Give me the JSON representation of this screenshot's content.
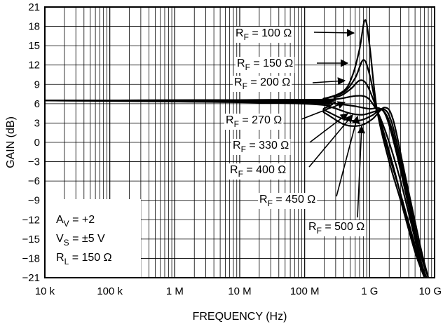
{
  "chart_data": {
    "type": "line",
    "title": "",
    "xlabel": "FREQUENCY (Hz)",
    "ylabel": "GAIN (dB)",
    "x_scale": "log",
    "xlim": [
      10000,
      10000000000
    ],
    "ylim": [
      -21,
      21
    ],
    "grid": true,
    "x_tick_values": [
      10000,
      100000,
      1000000,
      10000000,
      100000000,
      1000000000,
      10000000000
    ],
    "x_tick_labels": [
      "10 k",
      "100 k",
      "1 M",
      "10 M",
      "100 M",
      "1 G",
      "10 G"
    ],
    "y_tick_values": [
      21,
      18,
      15,
      12,
      9,
      6,
      3,
      0,
      -3,
      -6,
      -9,
      -12,
      -15,
      -18,
      -21
    ],
    "y_tick_labels": [
      "21",
      "18",
      "15",
      "12",
      "9",
      "6",
      "3",
      "0",
      "−3",
      "−6",
      "−9",
      "−12",
      "−15",
      "−18",
      "−21"
    ],
    "conditions": [
      {
        "sym": "A",
        "sub": "V",
        "rest": " = +2"
      },
      {
        "sym": "V",
        "sub": "S",
        "rest": " = ±5 V"
      },
      {
        "sym": "R",
        "sub": "L",
        "rest": " = 150 Ω"
      }
    ],
    "series": [
      {
        "sym": "R",
        "sub": "F",
        "rest": " = 100 Ω",
        "x": [
          10000,
          100000000,
          200000000,
          400000000,
          550000000,
          700000000,
          850000000,
          1000000000,
          1300000000,
          2000000000,
          3000000000,
          5000000000,
          7000000000
        ],
        "y": [
          6.5,
          6.6,
          6.8,
          8.0,
          10.5,
          14.5,
          19.0,
          15.0,
          5.0,
          -3.0,
          -9.0,
          -17.0,
          -21.0
        ]
      },
      {
        "sym": "R",
        "sub": "F",
        "rest": " = 150 Ω",
        "x": [
          10000,
          100000000,
          200000000,
          400000000,
          600000000,
          800000000,
          1000000000,
          1300000000,
          2000000000,
          3000000000,
          5000000000,
          7000000000
        ],
        "y": [
          6.5,
          6.6,
          6.8,
          7.8,
          10.0,
          12.8,
          10.5,
          5.0,
          -2.0,
          -8.0,
          -16.0,
          -21.0
        ]
      },
      {
        "sym": "R",
        "sub": "F",
        "rest": " = 200 Ω",
        "x": [
          10000,
          100000000,
          300000000,
          500000000,
          700000000,
          900000000,
          1200000000,
          1600000000,
          2500000000,
          4000000000,
          7000000000
        ],
        "y": [
          6.5,
          6.6,
          7.0,
          8.2,
          9.6,
          9.0,
          6.0,
          2.0,
          -5.0,
          -13.0,
          -21.0
        ]
      },
      {
        "sym": "R",
        "sub": "F",
        "rest": " = 270 Ω",
        "x": [
          10000,
          100000000,
          300000000,
          600000000,
          900000000,
          1200000000,
          1500000000,
          2000000000,
          3000000000,
          5000000000,
          7000000000
        ],
        "y": [
          6.5,
          6.5,
          6.7,
          7.2,
          7.0,
          5.5,
          3.5,
          0.0,
          -6.0,
          -15.0,
          -21.0
        ]
      },
      {
        "sym": "R",
        "sub": "F",
        "rest": " = 330 Ω",
        "x": [
          10000,
          100000000,
          300000000,
          600000000,
          1000000000,
          1400000000,
          1800000000,
          2500000000,
          4000000000,
          6000000000,
          7500000000
        ],
        "y": [
          6.5,
          6.4,
          6.0,
          5.6,
          5.2,
          5.3,
          4.0,
          -1.0,
          -10.0,
          -18.0,
          -21.0
        ]
      },
      {
        "sym": "R",
        "sub": "F",
        "rest": " = 400 Ω",
        "x": [
          10000,
          100000000,
          250000000,
          500000000,
          800000000,
          1200000000,
          1600000000,
          2200000000,
          3500000000,
          6000000000,
          7500000000
        ],
        "y": [
          6.5,
          6.3,
          5.5,
          4.5,
          4.3,
          4.8,
          5.0,
          2.0,
          -7.0,
          -18.0,
          -21.0
        ]
      },
      {
        "sym": "R",
        "sub": "F",
        "rest": " = 450 Ω",
        "x": [
          10000,
          100000000,
          200000000,
          400000000,
          700000000,
          1100000000,
          1600000000,
          2200000000,
          3500000000,
          6000000000,
          8000000000
        ],
        "y": [
          6.5,
          6.2,
          5.0,
          3.6,
          3.4,
          4.2,
          5.2,
          3.0,
          -6.0,
          -17.0,
          -21.0
        ]
      },
      {
        "sym": "R",
        "sub": "F",
        "rest": " = 500 Ω",
        "x": [
          10000,
          100000000,
          200000000,
          400000000,
          700000000,
          1100000000,
          1700000000,
          2300000000,
          3500000000,
          6000000000,
          8000000000
        ],
        "y": [
          6.5,
          6.0,
          4.6,
          2.8,
          2.6,
          3.6,
          5.4,
          3.5,
          -5.0,
          -16.0,
          -21.0
        ]
      }
    ]
  }
}
